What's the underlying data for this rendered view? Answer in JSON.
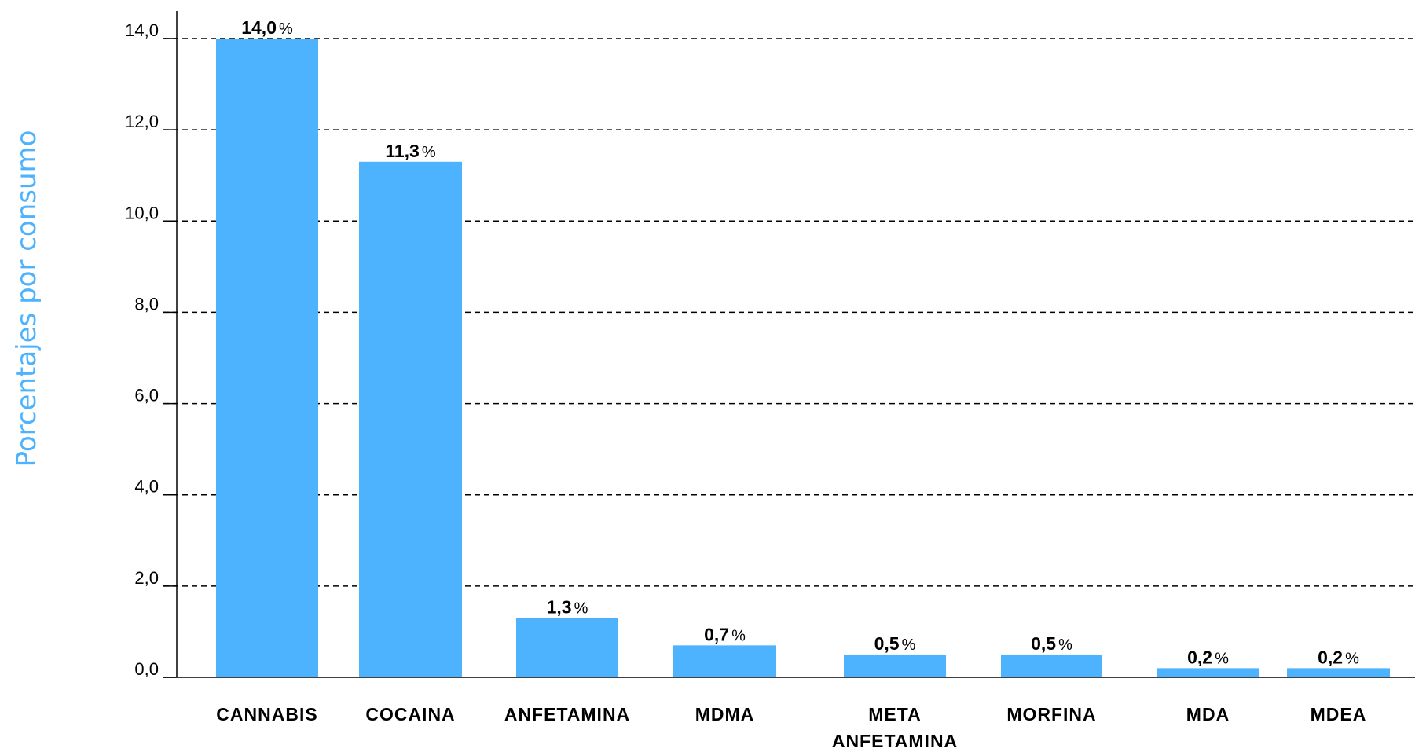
{
  "chart_data": {
    "type": "bar",
    "ylabel": "Porcentajes por consumo",
    "xlabel": "",
    "ylim": [
      0,
      14
    ],
    "yticks": [
      "0,0",
      "2,0",
      "4,0",
      "6,0",
      "8,0",
      "10,0",
      "12,0",
      "14,0"
    ],
    "grid": true,
    "bar_color": "#4db3ff",
    "categories": [
      [
        "CANNABIS"
      ],
      [
        "COCAINA"
      ],
      [
        "ANFETAMINA"
      ],
      [
        "MDMA"
      ],
      [
        "META",
        "ANFETAMINA"
      ],
      [
        "MORFINA"
      ],
      [
        "MDA"
      ],
      [
        "MDEA"
      ]
    ],
    "values": [
      14.0,
      11.3,
      1.3,
      0.7,
      0.5,
      0.5,
      0.2,
      0.2
    ],
    "data_labels": [
      "14,0",
      "11,3",
      "1,3",
      "0,7",
      "0,5",
      "0,5",
      "0,2",
      "0,2"
    ],
    "unit": "%"
  }
}
